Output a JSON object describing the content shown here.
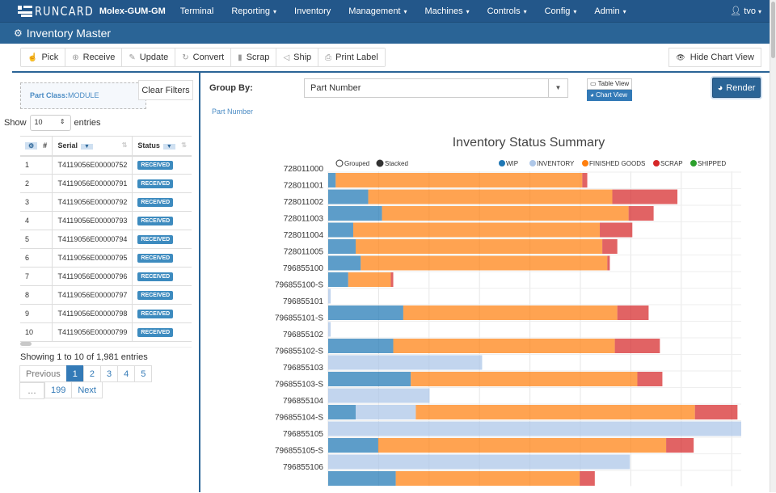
{
  "navbar": {
    "logo": "RUNCARD",
    "site": "Molex-GUM-GM",
    "items": [
      {
        "label": "Terminal",
        "dropdown": false
      },
      {
        "label": "Reporting",
        "dropdown": true
      },
      {
        "label": "Inventory",
        "dropdown": false
      },
      {
        "label": "Management",
        "dropdown": true
      },
      {
        "label": "Machines",
        "dropdown": true
      },
      {
        "label": "Controls",
        "dropdown": true
      },
      {
        "label": "Config",
        "dropdown": true
      },
      {
        "label": "Admin",
        "dropdown": true
      }
    ],
    "user": "tvo",
    "user_icon": "user-icon"
  },
  "page": {
    "title": "Inventory Master",
    "title_icon": "gear-icon"
  },
  "toolbar": {
    "buttons": [
      {
        "label": "Pick",
        "icon": "hand-icon",
        "glyph": "☝"
      },
      {
        "label": "Receive",
        "icon": "download-icon",
        "glyph": "⊕"
      },
      {
        "label": "Update",
        "icon": "edit-icon",
        "glyph": "✎"
      },
      {
        "label": "Convert",
        "icon": "refresh-icon",
        "glyph": "↻"
      },
      {
        "label": "Scrap",
        "icon": "trash-icon",
        "glyph": "▮"
      },
      {
        "label": "Ship",
        "icon": "send-icon",
        "glyph": "◁"
      },
      {
        "label": "Print Label",
        "icon": "print-icon",
        "glyph": "⎙"
      }
    ],
    "hide_chart": "Hide Chart View",
    "hide_chart_icon": "eye-icon"
  },
  "filters": {
    "part_class_label": "Part Class:",
    "part_class_value": "MODULE",
    "clear": "Clear Filters"
  },
  "table": {
    "show_label": "Show",
    "entries_label": "entries",
    "page_size": "10",
    "columns": [
      "#",
      "Serial",
      "Status"
    ],
    "rows": [
      {
        "num": "1",
        "serial": "T4119056E00000752",
        "status": "RECEIVED"
      },
      {
        "num": "2",
        "serial": "T4119056E00000791",
        "status": "RECEIVED"
      },
      {
        "num": "3",
        "serial": "T4119056E00000792",
        "status": "RECEIVED"
      },
      {
        "num": "4",
        "serial": "T4119056E00000793",
        "status": "RECEIVED"
      },
      {
        "num": "5",
        "serial": "T4119056E00000794",
        "status": "RECEIVED"
      },
      {
        "num": "6",
        "serial": "T4119056E00000795",
        "status": "RECEIVED"
      },
      {
        "num": "7",
        "serial": "T4119056E00000796",
        "status": "RECEIVED"
      },
      {
        "num": "8",
        "serial": "T4119056E00000797",
        "status": "RECEIVED"
      },
      {
        "num": "9",
        "serial": "T4119056E00000798",
        "status": "RECEIVED"
      },
      {
        "num": "10",
        "serial": "T4119056E00000799",
        "status": "RECEIVED"
      }
    ],
    "info": "Showing 1 to 10 of 1,981 entries",
    "pagination": {
      "previous": "Previous",
      "pages": [
        "1",
        "2",
        "3",
        "4",
        "5",
        "…",
        "199"
      ],
      "active": "1",
      "next": "Next"
    }
  },
  "controls": {
    "group_by_label": "Group By:",
    "group_by_value": "Part Number",
    "table_view": "Table View",
    "chart_view": "Chart View",
    "render": "Render",
    "breadcrumb": "Part Number"
  },
  "chart_data": {
    "type": "bar",
    "orientation": "horizontal",
    "stacked": true,
    "title": "Inventory Status Summary",
    "mode_options": [
      "Grouped",
      "Stacked"
    ],
    "mode_selected": "Stacked",
    "legend_position": "top-right",
    "grid": true,
    "xlabel": "",
    "ylabel": "",
    "categories": [
      "728011000",
      "728011001",
      "728011002",
      "728011003",
      "728011004",
      "728011005",
      "796855100",
      "796855100-S",
      "796855101",
      "796855101-S",
      "796855102",
      "796855102-S",
      "796855103",
      "796855103-S",
      "796855104",
      "796855104-S",
      "796855105",
      "796855105-S",
      "796855106"
    ],
    "series": [
      {
        "name": "WIP",
        "color": "#1f77b4",
        "values": [
          6,
          32,
          43,
          20,
          22,
          26,
          16,
          0,
          60,
          0,
          52,
          0,
          66,
          0,
          22,
          0,
          40,
          0,
          54
        ]
      },
      {
        "name": "INVENTORY",
        "color": "#aec7e8",
        "values": [
          0,
          0,
          0,
          0,
          0,
          0,
          0,
          2,
          0,
          2,
          0,
          123,
          0,
          81,
          48,
          330,
          0,
          241,
          0
        ]
      },
      {
        "name": "FINISHED GOODS",
        "color": "#ff7f0e",
        "values": [
          197,
          195,
          197,
          197,
          197,
          197,
          34,
          0,
          171,
          0,
          177,
          0,
          181,
          0,
          223,
          0,
          230,
          0,
          147
        ]
      },
      {
        "name": "SCRAP",
        "color": "#d62728",
        "values": [
          4,
          52,
          20,
          26,
          12,
          2,
          2,
          0,
          25,
          0,
          36,
          0,
          20,
          0,
          34,
          0,
          22,
          0,
          12
        ]
      },
      {
        "name": "SHIPPED",
        "color": "#2ca02c",
        "values": [
          0,
          0,
          0,
          0,
          0,
          0,
          0,
          0,
          0,
          0,
          0,
          0,
          0,
          0,
          0,
          0,
          0,
          0,
          0
        ]
      }
    ],
    "xlim": [
      0,
      330
    ]
  }
}
